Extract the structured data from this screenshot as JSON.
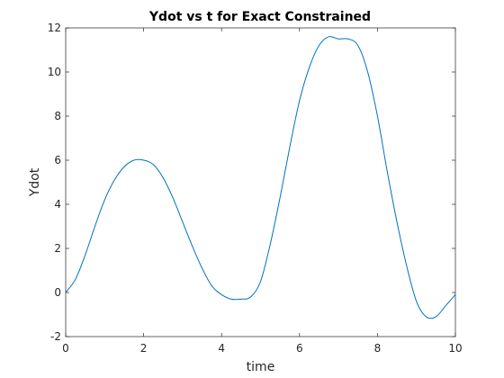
{
  "chart_data": {
    "type": "line",
    "title": "Ydot vs t for Exact Constrained",
    "xlabel": "time",
    "ylabel": "Ydot",
    "xlim": [
      0,
      10
    ],
    "ylim": [
      -2,
      12
    ],
    "xticks": [
      0,
      2,
      4,
      6,
      8,
      10
    ],
    "yticks": [
      -2,
      0,
      2,
      4,
      6,
      8,
      10,
      12
    ],
    "grid": false,
    "legend": "none",
    "series": [
      {
        "color": "#0072bd",
        "x": [
          0,
          0.25,
          0.5,
          0.75,
          1.0,
          1.25,
          1.5,
          1.75,
          2.0,
          2.25,
          2.5,
          2.75,
          3.0,
          3.25,
          3.5,
          3.75,
          4.0,
          4.25,
          4.5,
          4.75,
          5.0,
          5.25,
          5.5,
          5.75,
          6.0,
          6.25,
          6.5,
          6.75,
          7.0,
          7.25,
          7.5,
          7.75,
          8.0,
          8.25,
          8.5,
          8.75,
          9.0,
          9.25,
          9.5,
          9.75,
          10.0
        ],
        "y": [
          0.0,
          0.6,
          1.7,
          3.0,
          4.2,
          5.1,
          5.7,
          6.0,
          6.0,
          5.8,
          5.2,
          4.3,
          3.2,
          2.1,
          1.1,
          0.3,
          -0.1,
          -0.3,
          -0.3,
          -0.2,
          0.5,
          2.2,
          4.3,
          6.6,
          8.7,
          10.2,
          11.2,
          11.6,
          11.5,
          11.5,
          11.2,
          10.0,
          8.0,
          5.5,
          3.2,
          1.2,
          -0.4,
          -1.1,
          -1.1,
          -0.6,
          -0.1
        ]
      }
    ]
  }
}
